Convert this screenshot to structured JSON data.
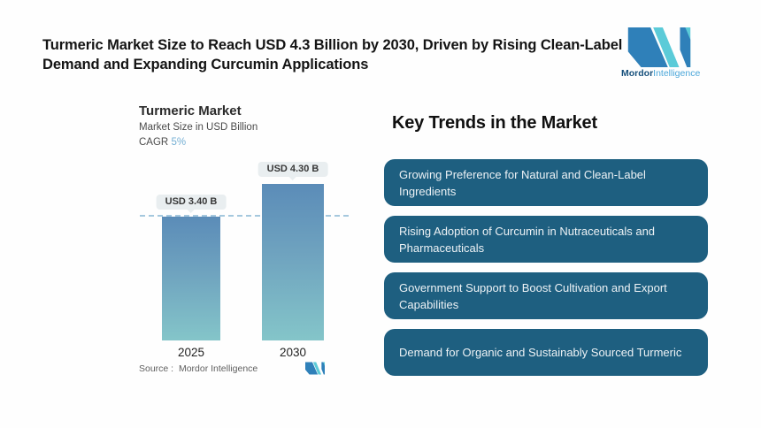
{
  "header": {
    "title": "Turmeric Market Size to Reach USD 4.3 Billion by 2030, Driven by Rising Clean-Label Demand and Expanding Curcumin Applications",
    "title_lines": [
      "Turmeric Market Size to Reach USD 4.3 Billion by 2030, Driven by Rising Clean-Label",
      "Demand and Expanding Curcumin Applications"
    ]
  },
  "brand": {
    "name_bold": "Mordor",
    "name_light": "Intelligence",
    "logo_blue": "#2f80b9",
    "logo_teal": "#5bcbd8"
  },
  "chart": {
    "title": "Turmeric Market",
    "subtitle": "Market Size in USD Billion",
    "cagr_label": "CAGR",
    "cagr_value": "5%",
    "source_label": "Source :",
    "source_value": "Mordor Intelligence"
  },
  "chart_data": {
    "type": "bar",
    "title": "Turmeric Market",
    "subtitle": "Market Size in USD Billion",
    "unit": "USD Billion",
    "cagr": "5%",
    "categories": [
      "2025",
      "2030"
    ],
    "values": [
      3.4,
      4.3
    ],
    "value_labels": [
      "USD 3.40 B",
      "USD 4.30 B"
    ],
    "ylim": [
      0,
      4.3
    ],
    "reference_line": 3.4,
    "grid": false,
    "legend": "none",
    "bar_gradient_top": "#5b8cb8",
    "bar_gradient_bottom": "#84c5c9"
  },
  "trends": {
    "heading": "Key Trends in the Market",
    "box_color": "#1e5f80",
    "items": [
      {
        "label": "Growing Preference for Natural and Clean-Label Ingredients"
      },
      {
        "label": "Rising Adoption of Curcumin in Nutraceuticals and Pharmaceuticals"
      },
      {
        "label": "Government Support to Boost Cultivation and Export Capabilities"
      },
      {
        "label": "Demand for Organic and Sustainably Sourced Turmeric"
      }
    ]
  }
}
